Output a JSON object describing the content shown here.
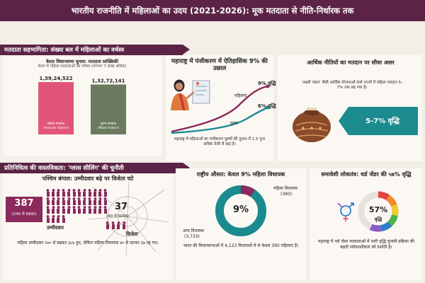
{
  "header": {
    "title": "भारतीय राजनीति में महिलाओं का उदय (2021-2026): मूक मतदाता से नीति-निर्धारक तक"
  },
  "section1": {
    "label": "मतदाता सहभागिता: संख्या बल में महिलाओं का वर्चस्व",
    "kerala": {
      "title": "केरल विधानसभा चुनाव: मतदाता सांख्यिकी",
      "subtitle": "केरल में महिला मतदाताओं का वर्चस्व (लगभग 7 लाख अधिक)"
    },
    "maharashtra": {
      "title": "महाराष्ट्र में पंजीकरण में ऐतिहासिक 9% की उछाल",
      "caption": "महाराष्ट्र में महिलाओं का पंजीकरण पुरुषों की तुलना में 1.5 गुना अधिक तेजी से बढ़ा है।"
    },
    "economic": {
      "title": "आर्थिक नीतियों का मतदान पर सीधा असर",
      "caption": "'लक्ष्मी भंडार' जैसी आर्थिक योजनाओं वाले राज्यों में महिला मतदान 5-7% तक बढ़ गया है।",
      "badge": "5-7% वृद्धि"
    }
  },
  "section2": {
    "label": "प्रतिनिधित्व की वास्तविकता: 'ग्लास सीलिंग' की चुनौती",
    "bengal": {
      "title": "पश्चिम बंगाल: उम्मीदवार बढ़े पर विजेता घटे",
      "candidates_value": "387",
      "candidates_note": "(240 से बढ़कर)",
      "winners_value": "37",
      "winners_note": "(40 से घटकर)",
      "candidates_label": "उम्मीदवार",
      "winners_label": "विजेता",
      "caption": "महिला उम्मीदवार २४० से बढ़कर ३८७ हुए, लेकिन महिला विधायक ४० से घटकर ३७ रह गए।"
    },
    "national": {
      "title": "राष्ट्रीय औसत: केवल 9% महिला विधायक",
      "center_label": "9%",
      "women_label": "महिला विधायक",
      "women_value": "(390)",
      "others_label": "अन्य विधायक",
      "others_value": "(3,733)",
      "caption": "भारत की विधानसभाओं में 4,123 विधायकों में से केवल 390 महिलाएं हैं।"
    },
    "inclusive": {
      "title": "समावेशी लोकतंत्र: थर्ड जेंडर की ५७% वृद्धि",
      "center_value": "57%",
      "center_label": "वृद्धि",
      "caption": "महाराष्ट्र में थर्ड जेंडर मतदाताओं में भारी वृद्धि चुनावी प्रक्रिया की बढ़ती संवेदनशीलता को दर्शाती है।"
    }
  },
  "chart_data": [
    {
      "type": "bar",
      "title": "केरल विधानसभा चुनाव: मतदाता सांख्यिकी",
      "subtitle": "केरल में महिला मतदाताओं का वर्चस्व (लगभग 7 लाख अधिक)",
      "categories": [
        "महिला मतदाता (Female Voters)",
        "पुरुष मतदाता (Male Voters)"
      ],
      "values": [
        13924522,
        13272141
      ],
      "value_labels": [
        "1,39,24,522",
        "1,32,72,141"
      ],
      "category_lines": [
        [
          "महिला मतदाता",
          "(Female Voters)"
        ],
        [
          "पुरुष मतदाता",
          "(Male Voters)"
        ]
      ],
      "colors": [
        "#e2557b",
        "#6b7a5e"
      ]
    },
    {
      "type": "line",
      "title": "महाराष्ट्र में पंजीकरण में ऐतिहासिक 9% की उछाल",
      "series": [
        {
          "name": "महिलाएं",
          "end_label": "9% वृद्धि",
          "color": "#8b2a5c"
        },
        {
          "name": "पुरुष",
          "end_label": "6% वृद्धि",
          "color": "#1b8b8f"
        }
      ]
    },
    {
      "type": "bar",
      "title": "पश्चिम बंगाल: उम्मीदवार बढ़े पर विजेता घटे",
      "categories": [
        "उम्मीदवार",
        "विजेता"
      ],
      "values": [
        387,
        37
      ],
      "previous": [
        240,
        40
      ]
    },
    {
      "type": "pie",
      "title": "राष्ट्रीय औसत: केवल 9% महिला विधायक",
      "labels": [
        "महिला विधायक",
        "अन्य विधायक"
      ],
      "values": [
        390,
        3733
      ],
      "colors": [
        "#8b2a5c",
        "#1b8b8f"
      ]
    },
    {
      "type": "pie",
      "title": "समावेशी लोकतंत्र: थर्ड जेंडर की ५७% वृद्धि",
      "values": [
        57,
        43
      ],
      "center_value": "57%",
      "colors": [
        "rainbow",
        "#e8e2dc"
      ]
    }
  ],
  "colors": {
    "maroon": "#5b2346",
    "pink": "#e2557b",
    "olive": "#6b7a5e",
    "teal": "#1b8b8f",
    "plum": "#8b2a5c"
  }
}
